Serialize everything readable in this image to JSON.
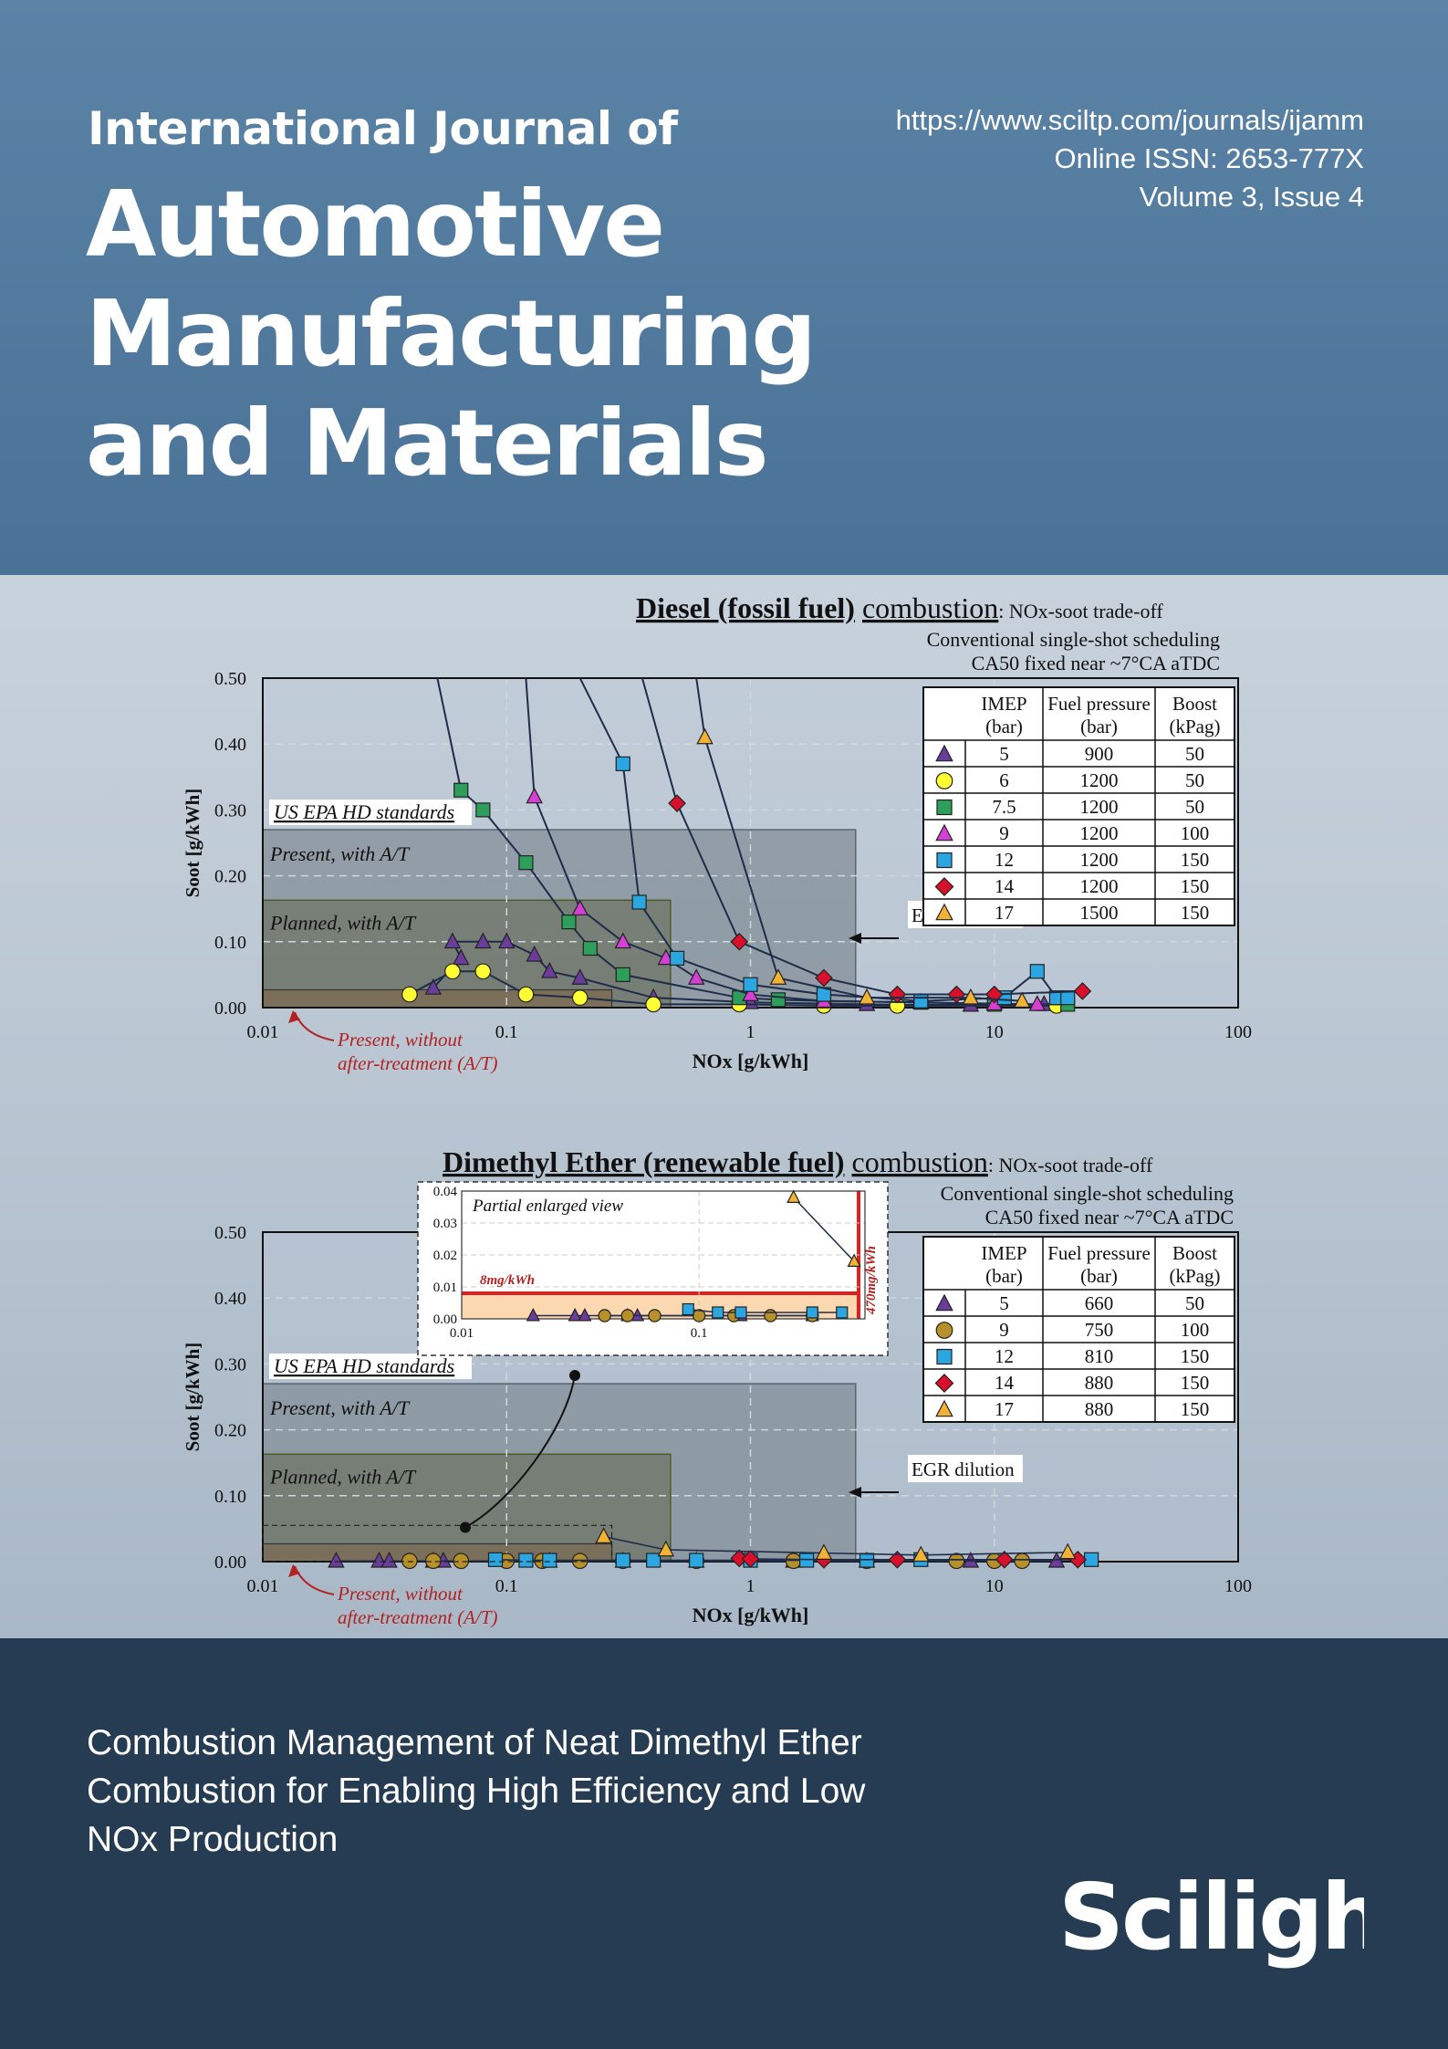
{
  "journal": {
    "title_line1": "International Journal of",
    "title_line2": "Automotive",
    "title_line3": "Manufacturing",
    "title_line4": "and Materials",
    "url": "https://www.sciltp.com/journals/ijamm",
    "issn": "Online ISSN: 2653-777X",
    "volume": "Volume 3, Issue 4"
  },
  "article": {
    "title_line1": "Combustion Management of Neat Dimethyl Ether",
    "title_line2": "Combustion for Enabling High Efficiency and Low",
    "title_line3": "NOx Production"
  },
  "publisher": {
    "name": "Scilight"
  },
  "colors": {
    "header_bg": "#4f779b",
    "footer_bg": "#263c52",
    "red_annotation": "#b22222",
    "purple": "#6a3d9a",
    "yellow": "#ffff33",
    "green": "#2e9e5b",
    "magenta": "#d43fd4",
    "blue": "#2ba6e0",
    "red": "#d9102b",
    "orange": "#f2b233",
    "olive": "#b8902a"
  },
  "chart_data": [
    {
      "type": "scatter",
      "title_bold": "Diesel (fossil fuel)",
      "title_rest": "combustion",
      "title_suffix": ": NOx-soot trade-off",
      "subtitle1": "Conventional single-shot scheduling",
      "subtitle2": "CA50 fixed near ~7°CA aTDC",
      "xlabel": "NOx [g/kWh]",
      "ylabel": "Soot [g/kWh]",
      "xscale": "log",
      "xlim": [
        0.01,
        100
      ],
      "ylim": [
        0,
        0.5
      ],
      "xticks": [
        "0.01",
        "0.1",
        "1",
        "10",
        "100"
      ],
      "yticks": [
        "0.00",
        "0.10",
        "0.20",
        "0.30",
        "0.40",
        "0.50"
      ],
      "grid": true,
      "annotations": {
        "epa": "US EPA HD standards",
        "present_at": "Present, with A/T",
        "planned_at": "Planned, with A/T",
        "egr": "EGR dilution",
        "no_at_1": "Present, without",
        "no_at_2": "after-treatment (A/T)"
      },
      "regions": [
        {
          "name": "Present, with A/T",
          "x": [
            0.01,
            2.7
          ],
          "y": [
            0,
            0.27
          ]
        },
        {
          "name": "Planned, with A/T",
          "x": [
            0.01,
            0.47
          ],
          "y": [
            0,
            0.163
          ]
        },
        {
          "name": "Present, without after-treatment (A/T)",
          "x": [
            0.01,
            0.27
          ],
          "y": [
            0,
            0.027
          ]
        }
      ],
      "legend": {
        "headers": [
          [
            "IMEP",
            "(bar)"
          ],
          [
            "Fuel pressure",
            "(bar)"
          ],
          [
            "Boost",
            "(kPag)"
          ]
        ],
        "rows": [
          {
            "marker": "triangle",
            "color": "#6a3d9a",
            "imep": "5",
            "fuel_pressure": "900",
            "boost": "50"
          },
          {
            "marker": "circle",
            "color": "#ffff33",
            "imep": "6",
            "fuel_pressure": "1200",
            "boost": "50"
          },
          {
            "marker": "square",
            "color": "#2e9e5b",
            "imep": "7.5",
            "fuel_pressure": "1200",
            "boost": "50"
          },
          {
            "marker": "triangle",
            "color": "#d43fd4",
            "imep": "9",
            "fuel_pressure": "1200",
            "boost": "100"
          },
          {
            "marker": "square",
            "color": "#2ba6e0",
            "imep": "12",
            "fuel_pressure": "1200",
            "boost": "150"
          },
          {
            "marker": "diamond",
            "color": "#d9102b",
            "imep": "14",
            "fuel_pressure": "1200",
            "boost": "150"
          },
          {
            "marker": "triangle",
            "color": "#f2b233",
            "imep": "17",
            "fuel_pressure": "1500",
            "boost": "150"
          }
        ]
      },
      "series": [
        {
          "marker": "triangle",
          "color": "#6a3d9a",
          "points": [
            [
              0.05,
              0.03
            ],
            [
              0.065,
              0.075
            ],
            [
              0.06,
              0.1
            ],
            [
              0.08,
              0.1
            ],
            [
              0.1,
              0.1
            ],
            [
              0.13,
              0.08
            ],
            [
              0.15,
              0.055
            ],
            [
              0.2,
              0.045
            ],
            [
              0.4,
              0.015
            ],
            [
              1,
              0.008
            ],
            [
              3,
              0.005
            ],
            [
              8,
              0.004
            ],
            [
              16,
              0.005
            ]
          ]
        },
        {
          "marker": "circle",
          "color": "#ffff33",
          "points": [
            [
              0.04,
              0.02
            ],
            [
              0.06,
              0.055
            ],
            [
              0.08,
              0.055
            ],
            [
              0.12,
              0.02
            ],
            [
              0.2,
              0.015
            ],
            [
              0.4,
              0.005
            ],
            [
              0.9,
              0.005
            ],
            [
              2,
              0.003
            ],
            [
              4,
              0.003
            ],
            [
              18,
              0.003
            ]
          ]
        },
        {
          "marker": "square",
          "color": "#2e9e5b",
          "points": [
            [
              0.065,
              0.33
            ],
            [
              0.08,
              0.3
            ],
            [
              0.12,
              0.22
            ],
            [
              0.18,
              0.13
            ],
            [
              0.22,
              0.09
            ],
            [
              0.3,
              0.05
            ],
            [
              0.9,
              0.015
            ],
            [
              1.3,
              0.012
            ],
            [
              2,
              0.01
            ],
            [
              5,
              0.008
            ],
            [
              10,
              0.005
            ],
            [
              20,
              0.005
            ]
          ]
        },
        {
          "marker": "triangle",
          "color": "#d43fd4",
          "points": [
            [
              0.13,
              0.32
            ],
            [
              0.2,
              0.15
            ],
            [
              0.3,
              0.1
            ],
            [
              0.45,
              0.075
            ],
            [
              0.6,
              0.045
            ],
            [
              1,
              0.02
            ],
            [
              2,
              0.01
            ],
            [
              5,
              0.008
            ],
            [
              10,
              0.006
            ],
            [
              15,
              0.005
            ]
          ]
        },
        {
          "marker": "square",
          "color": "#2ba6e0",
          "points": [
            [
              0.3,
              0.37
            ],
            [
              0.35,
              0.16
            ],
            [
              0.5,
              0.075
            ],
            [
              1,
              0.035
            ],
            [
              2,
              0.02
            ],
            [
              5,
              0.01
            ],
            [
              11,
              0.015
            ],
            [
              15,
              0.055
            ],
            [
              18,
              0.015
            ],
            [
              20,
              0.015
            ]
          ]
        },
        {
          "marker": "diamond",
          "color": "#d9102b",
          "points": [
            [
              0.5,
              0.31
            ],
            [
              0.9,
              0.1
            ],
            [
              2,
              0.045
            ],
            [
              4,
              0.02
            ],
            [
              7,
              0.02
            ],
            [
              10,
              0.02
            ],
            [
              23,
              0.025
            ]
          ]
        },
        {
          "marker": "triangle",
          "color": "#f2b233",
          "points": [
            [
              0.65,
              0.41
            ],
            [
              1.3,
              0.045
            ],
            [
              3,
              0.015
            ],
            [
              8,
              0.015
            ],
            [
              13,
              0.01
            ]
          ]
        }
      ]
    },
    {
      "type": "scatter",
      "title_bold": "Dimethyl Ether (renewable fuel)",
      "title_rest": "combustion",
      "title_suffix": ": NOx-soot trade-off",
      "subtitle1": "Conventional single-shot scheduling",
      "subtitle2": "CA50 fixed near ~7°CA aTDC",
      "xlabel": "NOx [g/kWh]",
      "ylabel": "Soot [g/kWh]",
      "xscale": "log",
      "xlim": [
        0.01,
        100
      ],
      "ylim": [
        0,
        0.5
      ],
      "xticks": [
        "0.01",
        "0.1",
        "1",
        "10",
        "100"
      ],
      "yticks": [
        "0.00",
        "0.10",
        "0.20",
        "0.30",
        "0.40",
        "0.50"
      ],
      "grid": true,
      "annotations": {
        "epa": "US EPA HD standards",
        "present_at": "Present, with A/T",
        "planned_at": "Planned, with A/T",
        "egr": "EGR dilution",
        "no_at_1": "Present, without",
        "no_at_2": "after-treatment (A/T)"
      },
      "legend": {
        "headers": [
          [
            "IMEP",
            "(bar)"
          ],
          [
            "Fuel pressure",
            "(bar)"
          ],
          [
            "Boost",
            "(kPag)"
          ]
        ],
        "rows": [
          {
            "marker": "triangle",
            "color": "#6a3d9a",
            "imep": "5",
            "fuel_pressure": "660",
            "boost": "50"
          },
          {
            "marker": "circle",
            "color": "#b8902a",
            "imep": "9",
            "fuel_pressure": "750",
            "boost": "100"
          },
          {
            "marker": "square",
            "color": "#2ba6e0",
            "imep": "12",
            "fuel_pressure": "810",
            "boost": "150"
          },
          {
            "marker": "diamond",
            "color": "#d9102b",
            "imep": "14",
            "fuel_pressure": "880",
            "boost": "150"
          },
          {
            "marker": "triangle",
            "color": "#f2b233",
            "imep": "17",
            "fuel_pressure": "880",
            "boost": "150"
          }
        ]
      },
      "inset": {
        "title": "Partial enlarged view",
        "limit_h": "8mg/kWh",
        "limit_v": "470mg/kWh",
        "xlim": [
          0.01,
          0.5
        ],
        "ylim": [
          0,
          0.04
        ],
        "yticks": [
          "0.00",
          "0.01",
          "0.02",
          "0.03",
          "0.04"
        ],
        "xticks": [
          "0.01",
          "0.1"
        ]
      },
      "series": [
        {
          "marker": "triangle",
          "color": "#6a3d9a",
          "points": [
            [
              0.02,
              0.001
            ],
            [
              0.03,
              0.001
            ],
            [
              0.033,
              0.001
            ],
            [
              0.05,
              0.001
            ],
            [
              0.055,
              0.001
            ],
            [
              0.15,
              0.001
            ],
            [
              0.3,
              0.001
            ],
            [
              0.6,
              0.001
            ],
            [
              1.5,
              0.001
            ],
            [
              3,
              0.001
            ],
            [
              8,
              0.001
            ],
            [
              18,
              0.001
            ]
          ]
        },
        {
          "marker": "circle",
          "color": "#b8902a",
          "points": [
            [
              0.04,
              0.001
            ],
            [
              0.05,
              0.001
            ],
            [
              0.065,
              0.001
            ],
            [
              0.1,
              0.001
            ],
            [
              0.14,
              0.001
            ],
            [
              0.2,
              0.001
            ],
            [
              0.3,
              0.001
            ],
            [
              0.6,
              0.001
            ],
            [
              1.5,
              0.001
            ],
            [
              3,
              0.001
            ],
            [
              7,
              0.001
            ],
            [
              10,
              0.001
            ],
            [
              13,
              0.001
            ]
          ]
        },
        {
          "marker": "square",
          "color": "#2ba6e0",
          "points": [
            [
              0.09,
              0.003
            ],
            [
              0.12,
              0.002
            ],
            [
              0.15,
              0.002
            ],
            [
              0.3,
              0.002
            ],
            [
              0.4,
              0.002
            ],
            [
              0.6,
              0.002
            ],
            [
              1,
              0.002
            ],
            [
              1.7,
              0.002
            ],
            [
              3,
              0.002
            ],
            [
              5,
              0.003
            ],
            [
              25,
              0.003
            ]
          ]
        },
        {
          "marker": "diamond",
          "color": "#d9102b",
          "points": [
            [
              0.9,
              0.005
            ],
            [
              1,
              0.004
            ],
            [
              2,
              0.003
            ],
            [
              4,
              0.003
            ],
            [
              11,
              0.003
            ],
            [
              22,
              0.003
            ]
          ]
        },
        {
          "marker": "triangle",
          "color": "#f2b233",
          "points": [
            [
              0.25,
              0.038
            ],
            [
              0.45,
              0.018
            ],
            [
              2,
              0.013
            ],
            [
              5,
              0.01
            ],
            [
              20,
              0.014
            ]
          ]
        }
      ]
    }
  ]
}
